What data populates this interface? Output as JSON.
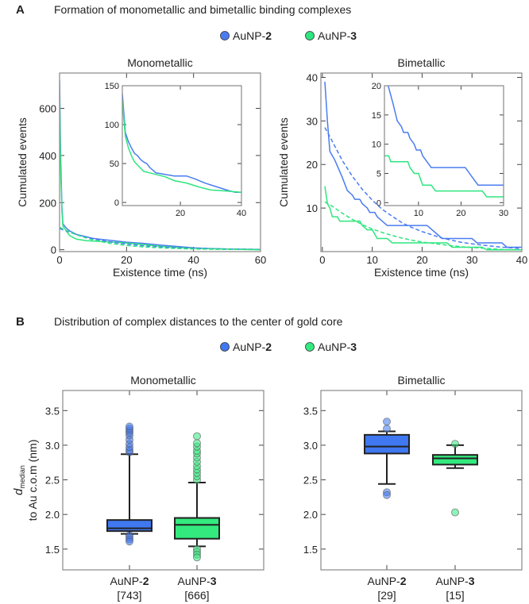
{
  "panel_a": {
    "letter": "A",
    "title": "Formation of monometallic and bimetallic binding complexes",
    "legend": [
      {
        "prefix": "AuNP-",
        "num": "2",
        "color": "#4a7cf0"
      },
      {
        "prefix": "AuNP-",
        "num": "3",
        "color": "#2ee67e"
      }
    ]
  },
  "panel_b": {
    "letter": "B",
    "title": "Distribution of complex distances to the center of gold core",
    "legend": [
      {
        "prefix": "AuNP-",
        "num": "2",
        "color": "#3f78f0"
      },
      {
        "prefix": "AuNP-",
        "num": "3",
        "color": "#33ea7e"
      }
    ],
    "ylabel_d": "d",
    "ylabel_sub": "median",
    "ylabel_rest": "to Au c.o.m (nm)"
  },
  "chart_data": [
    {
      "id": "mono_main",
      "type": "line",
      "title": "Monometallic",
      "xlabel": "Existence time (ns)",
      "ylabel": "Cumulated events",
      "xlim": [
        0,
        60
      ],
      "ylim": [
        -8,
        750
      ],
      "xticks": [
        0,
        20,
        40,
        60
      ],
      "xticklabels": [
        "0",
        "20",
        "40",
        "60"
      ],
      "yticks": [
        0,
        200,
        400,
        600
      ],
      "yticklabels": [
        "0",
        "200",
        "400",
        "600"
      ],
      "series": [
        {
          "name": "AuNP-2",
          "style": "solid",
          "color": "#4a7cf0",
          "x": [
            0,
            0.3,
            0.7,
            1,
            2,
            3,
            5,
            10,
            15,
            20,
            25,
            30,
            35,
            40,
            45,
            50,
            55,
            60
          ],
          "y": [
            720,
            400,
            180,
            110,
            92,
            80,
            65,
            48,
            40,
            32,
            27,
            20,
            14,
            8,
            5,
            3,
            2,
            1
          ]
        },
        {
          "name": "AuNP-3",
          "style": "solid",
          "color": "#2ee67e",
          "x": [
            0,
            0.3,
            0.7,
            1,
            2,
            3,
            5,
            8,
            15,
            20,
            25,
            30,
            35,
            40,
            45,
            50,
            55,
            60
          ],
          "y": [
            640,
            350,
            160,
            100,
            80,
            60,
            45,
            38,
            33,
            28,
            22,
            15,
            10,
            6,
            4,
            3,
            1,
            0
          ]
        },
        {
          "name": "AuNP-2 fit",
          "style": "dashed",
          "color": "#4a7cf0",
          "x": [
            0,
            5,
            10,
            15,
            20,
            25,
            30,
            35,
            40,
            45,
            50,
            55,
            60
          ],
          "y": [
            90,
            64,
            46,
            33,
            24,
            17,
            12,
            9,
            6,
            4,
            3,
            2,
            1
          ]
        },
        {
          "name": "AuNP-3 fit",
          "style": "dashed",
          "color": "#2ee67e",
          "x": [
            0,
            5,
            10,
            15,
            20,
            25,
            30,
            35,
            40,
            45,
            50,
            55,
            60
          ],
          "y": [
            95,
            63,
            41,
            27,
            18,
            12,
            8,
            5,
            3,
            2,
            1,
            1,
            0
          ]
        }
      ]
    },
    {
      "id": "mono_inset",
      "type": "line",
      "xlim": [
        1,
        40
      ],
      "ylim": [
        -4,
        150
      ],
      "xticks": [
        20,
        40
      ],
      "xticklabels": [
        "20",
        "40"
      ],
      "yticks": [
        0,
        50,
        100,
        150
      ],
      "yticklabels": [
        "0",
        "50",
        "100",
        "150"
      ],
      "series": [
        {
          "name": "AuNP-2",
          "style": "solid",
          "color": "#4a7cf0",
          "x": [
            1,
            2,
            3,
            4,
            5,
            6,
            7,
            8,
            9,
            10,
            12,
            15,
            18,
            22,
            25,
            28,
            32,
            36,
            38,
            40
          ],
          "y": [
            140,
            90,
            78,
            70,
            63,
            60,
            55,
            52,
            50,
            45,
            38,
            36,
            34,
            34,
            30,
            25,
            20,
            15,
            13,
            13
          ]
        },
        {
          "name": "AuNP-3",
          "style": "solid",
          "color": "#2ee67e",
          "x": [
            1,
            2,
            3,
            4,
            5,
            6,
            8,
            10,
            12,
            15,
            18,
            22,
            26,
            30,
            34,
            40
          ],
          "y": [
            130,
            85,
            70,
            60,
            52,
            48,
            40,
            38,
            36,
            33,
            28,
            25,
            20,
            16,
            15,
            13
          ]
        }
      ]
    },
    {
      "id": "bi_main",
      "type": "line",
      "title": "Bimetallic",
      "xlabel": "Existence time (ns)",
      "ylabel": "Cumulated events",
      "xlim": [
        -0.3,
        40
      ],
      "ylim": [
        0,
        41
      ],
      "xticks": [
        0,
        10,
        20,
        30,
        40
      ],
      "xticklabels": [
        "0",
        "10",
        "20",
        "30",
        "40"
      ],
      "yticks": [
        10,
        20,
        30,
        40
      ],
      "yticklabels": [
        "10",
        "20",
        "30",
        "40"
      ],
      "series": [
        {
          "name": "AuNP-2",
          "style": "solid",
          "color": "#4a7cf0",
          "x": [
            0.5,
            1,
            1.5,
            2.5,
            4,
            5,
            6,
            6.5,
            7.5,
            8,
            9,
            9.5,
            10.5,
            11,
            12,
            13,
            21,
            23,
            24,
            30,
            31,
            36,
            37,
            40
          ],
          "y": [
            39,
            30,
            23,
            21,
            17,
            14,
            13,
            12,
            12,
            11,
            10,
            9,
            9,
            8,
            7,
            6,
            6,
            4,
            3,
            3,
            2,
            2,
            1,
            1
          ]
        },
        {
          "name": "AuNP-3",
          "style": "solid",
          "color": "#2ee67e",
          "x": [
            0.5,
            1,
            1.5,
            2,
            3,
            3.5,
            7.5,
            8,
            9,
            10,
            10.5,
            11,
            13,
            14,
            25,
            26,
            32,
            33,
            40
          ],
          "y": [
            15,
            11,
            10,
            8,
            8,
            7,
            7,
            6,
            5,
            5,
            4,
            3,
            3,
            2,
            2,
            1,
            1,
            0.4,
            0.4
          ]
        },
        {
          "name": "AuNP-2 fit",
          "style": "dashed",
          "color": "#4a7cf0",
          "x": [
            0.5,
            2,
            4,
            6,
            8,
            10,
            12,
            14,
            16,
            18,
            20,
            24,
            28,
            32,
            36,
            40
          ],
          "y": [
            28.5,
            25.3,
            20.9,
            17.3,
            14.3,
            11.8,
            9.7,
            8.1,
            6.6,
            5.5,
            4.6,
            3.1,
            2.1,
            1.5,
            1.0,
            0.7
          ]
        },
        {
          "name": "AuNP-3 fit",
          "style": "dashed",
          "color": "#2ee67e",
          "x": [
            0.5,
            2,
            4,
            6,
            8,
            10,
            12,
            14,
            16,
            18,
            20,
            24,
            28,
            32,
            36,
            40
          ],
          "y": [
            11.4,
            10.4,
            8.8,
            7.4,
            6.2,
            5.2,
            4.4,
            3.7,
            3.1,
            2.6,
            2.2,
            1.6,
            1.1,
            0.8,
            0.5,
            0.4
          ]
        }
      ]
    },
    {
      "id": "bi_inset",
      "type": "line",
      "xlim": [
        2,
        30
      ],
      "ylim": [
        -0.5,
        20
      ],
      "xticks": [
        10,
        20,
        30
      ],
      "xticklabels": [
        "10",
        "20",
        "30"
      ],
      "yticks": [
        0,
        5,
        10,
        15,
        20
      ],
      "yticklabels": [
        "0",
        "5",
        "10",
        "15",
        "20"
      ],
      "series": [
        {
          "name": "AuNP-2",
          "style": "solid",
          "color": "#4a7cf0",
          "x": [
            2.5,
            4,
            5,
            6,
            6.5,
            7.5,
            8,
            9,
            9.5,
            10.5,
            11,
            12,
            13,
            21,
            23,
            24,
            30
          ],
          "y": [
            21,
            17,
            14,
            13,
            12,
            12,
            11,
            10,
            9,
            9,
            8,
            7,
            6,
            6,
            4,
            3,
            3
          ]
        },
        {
          "name": "AuNP-3",
          "style": "solid",
          "color": "#2ee67e",
          "x": [
            2,
            3,
            3.5,
            7.5,
            8,
            9,
            10,
            10.5,
            11,
            13,
            14,
            25,
            26,
            30
          ],
          "y": [
            8,
            8,
            7,
            7,
            6,
            5,
            5,
            4,
            3,
            3,
            2,
            2,
            1,
            1
          ]
        }
      ]
    },
    {
      "id": "box_mono",
      "type": "box",
      "title": "Monometallic",
      "ylim": [
        1.2,
        3.79
      ],
      "yticks": [
        1.5,
        2.0,
        2.5,
        3.0,
        3.5
      ],
      "yticklabels": [
        "1.5",
        "2.0",
        "2.5",
        "3.0",
        "3.5"
      ],
      "groups": [
        {
          "prefix": "AuNP-",
          "num": "2",
          "count": "[743]",
          "color": "#3f78f0",
          "q1": 1.76,
          "median": 1.8,
          "q3": 1.92,
          "whisker_low": 1.72,
          "whisker_high": 2.87,
          "outliers": [
            2.9,
            2.93,
            2.97,
            3.02,
            3.08,
            3.14,
            3.18,
            3.21,
            3.24,
            3.27,
            1.7,
            1.67,
            1.64,
            1.61
          ]
        },
        {
          "prefix": "AuNP-",
          "num": "3",
          "count": "[666]",
          "color": "#33ea7e",
          "q1": 1.65,
          "median": 1.85,
          "q3": 1.95,
          "whisker_low": 1.54,
          "whisker_high": 2.46,
          "outliers": [
            2.5,
            2.55,
            2.6,
            2.65,
            2.7,
            2.76,
            2.82,
            2.88,
            2.92,
            2.98,
            3.03,
            3.13,
            1.5,
            1.46,
            1.42,
            1.38
          ]
        }
      ]
    },
    {
      "id": "box_bi",
      "type": "box",
      "title": "Bimetallic",
      "ylim": [
        1.2,
        3.79
      ],
      "yticks": [
        1.5,
        2.0,
        2.5,
        3.0,
        3.5
      ],
      "yticklabels": [
        "1.5",
        "2.0",
        "2.5",
        "3.0",
        "3.5"
      ],
      "groups": [
        {
          "prefix": "AuNP-",
          "num": "2",
          "count": "[29]",
          "color": "#3f78f0",
          "q1": 2.88,
          "median": 2.98,
          "q3": 3.15,
          "whisker_low": 2.44,
          "whisker_high": 3.2,
          "outliers": [
            3.24,
            3.34,
            2.32,
            2.28
          ]
        },
        {
          "prefix": "AuNP-",
          "num": "3",
          "count": "[15]",
          "color": "#33ea7e",
          "q1": 2.72,
          "median": 2.81,
          "q3": 2.86,
          "whisker_low": 2.67,
          "whisker_high": 3.0,
          "outliers": [
            3.02,
            2.03
          ]
        }
      ]
    }
  ]
}
